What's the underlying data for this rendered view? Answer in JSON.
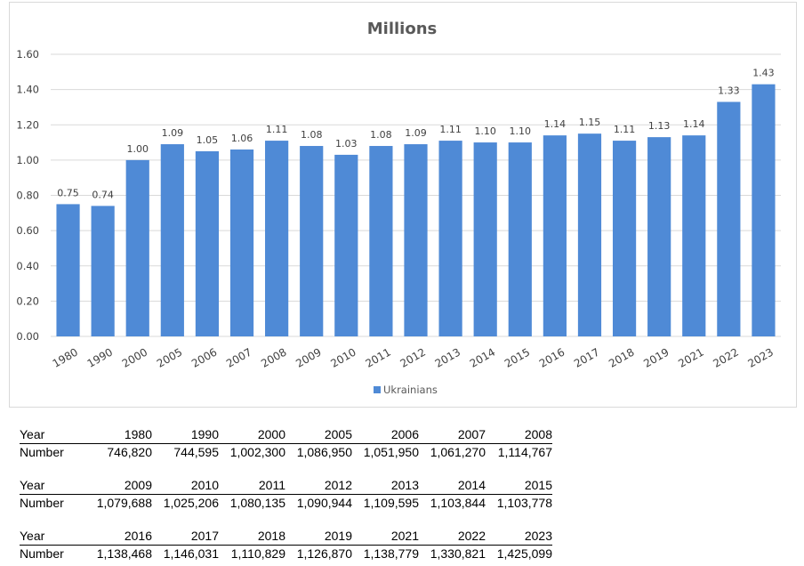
{
  "chart_data": {
    "type": "bar",
    "title": "Millions",
    "categories": [
      "1980",
      "1990",
      "2000",
      "2005",
      "2006",
      "2007",
      "2008",
      "2009",
      "2010",
      "2011",
      "2012",
      "2013",
      "2014",
      "2015",
      "2016",
      "2017",
      "2018",
      "2019",
      "2021",
      "2022",
      "2023"
    ],
    "series": [
      {
        "name": "Ukrainians",
        "values": [
          0.75,
          0.74,
          1.0,
          1.09,
          1.05,
          1.06,
          1.11,
          1.08,
          1.03,
          1.08,
          1.09,
          1.11,
          1.1,
          1.1,
          1.14,
          1.15,
          1.11,
          1.13,
          1.14,
          1.33,
          1.43
        ],
        "labels": [
          "0.75",
          "0.74",
          "1.00",
          "1.09",
          "1.05",
          "1.06",
          "1.11",
          "1.08",
          "1.03",
          "1.08",
          "1.09",
          "1.11",
          "1.10",
          "1.10",
          "1.14",
          "1.15",
          "1.11",
          "1.13",
          "1.14",
          "1.33",
          "1.43"
        ],
        "color": "#4f8ad6"
      }
    ],
    "yticks": [
      "0.00",
      "0.20",
      "0.40",
      "0.60",
      "0.80",
      "1.00",
      "1.20",
      "1.40",
      "1.60"
    ],
    "ylim": [
      0,
      1.6
    ],
    "grid": true,
    "legend_position": "bottom",
    "grid_color": "#d9d9d9"
  },
  "tables": [
    {
      "header_label": "Year",
      "row_label": "Number",
      "years": [
        "1980",
        "1990",
        "2000",
        "2005",
        "2006",
        "2007",
        "2008"
      ],
      "numbers": [
        "746,820",
        "744,595",
        "1,002,300",
        "1,086,950",
        "1,051,950",
        "1,061,270",
        "1,114,767"
      ]
    },
    {
      "header_label": "Year",
      "row_label": "Number",
      "years": [
        "2009",
        "2010",
        "2011",
        "2012",
        "2013",
        "2014",
        "2015"
      ],
      "numbers": [
        "1,079,688",
        "1,025,206",
        "1,080,135",
        "1,090,944",
        "1,109,595",
        "1,103,844",
        "1,103,778"
      ]
    },
    {
      "header_label": "Year",
      "row_label": "Number",
      "years": [
        "2016",
        "2017",
        "2018",
        "2019",
        "2021",
        "2022",
        "2023"
      ],
      "numbers": [
        "1,138,468",
        "1,146,031",
        "1,110,829",
        "1,126,870",
        "1,138,779",
        "1,330,821",
        "1,425,099"
      ]
    }
  ]
}
